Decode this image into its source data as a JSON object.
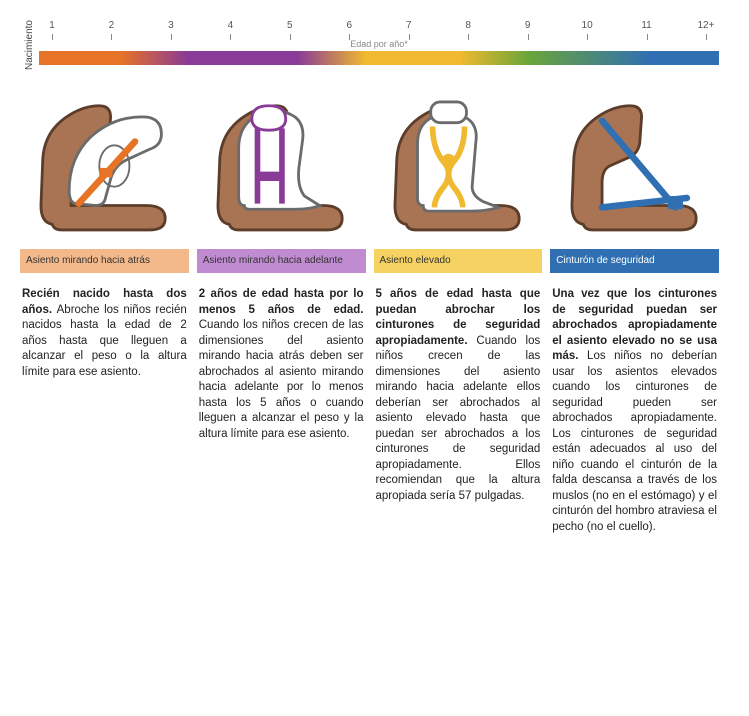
{
  "axis": {
    "birth_label": "Nacimiento",
    "ticks": [
      "1",
      "2",
      "3",
      "4",
      "5",
      "6",
      "7",
      "8",
      "9",
      "10",
      "11",
      "12+"
    ],
    "caption": "Edad por año*",
    "gradient_stops": [
      {
        "c": "#e67326",
        "p": 0
      },
      {
        "c": "#e67326",
        "p": 12
      },
      {
        "c": "#8a3a97",
        "p": 22
      },
      {
        "c": "#8a3a97",
        "p": 38
      },
      {
        "c": "#f0b92f",
        "p": 48
      },
      {
        "c": "#f0b92f",
        "p": 62
      },
      {
        "c": "#6aa53a",
        "p": 72
      },
      {
        "c": "#2f6fb2",
        "p": 90
      },
      {
        "c": "#2f6fb2",
        "p": 100
      }
    ]
  },
  "stages": [
    {
      "label": "Asiento mirando hacia atrás",
      "bar_color": "#f4b98a",
      "accent": "#e67326",
      "heading": "Recién nacido hasta dos años.",
      "body": "Abroche los niños recién nacidos hasta la edad de 2 años hasta que lleguen a alcanzar el peso o la altura límite para ese asiento."
    },
    {
      "label": "Asiento mirando hacia adelante",
      "bar_color": "#c08bd0",
      "accent": "#8a3a97",
      "heading": "2 años de edad hasta por lo menos 5 años de edad.",
      "body": "Cuando los niños crecen de las dimensiones del asiento mirando hacia atrás deben ser abrochados al asiento mirando hacia adelante por lo menos hasta los 5 años o cuando lleguen a alcanzar el peso y la altura límite para ese asiento."
    },
    {
      "label": "Asiento elevado",
      "bar_color": "#f5d261",
      "accent": "#f0b92f",
      "heading": "5 años de edad hasta que puedan abrochar los cinturones de seguridad apropiadamente.",
      "body": "Cuando los niños crecen de las dimensiones del asiento mirando hacia adelante ellos deberían ser abrochados al asiento elevado hasta que puedan ser abrochados a los cinturones de seguridad apropiadamente. Ellos recomiendan que la altura apropiada sería 57 pulgadas."
    },
    {
      "label": "Cinturón de seguridad",
      "bar_color": "#2f6fb2",
      "accent": "#2f6fb2",
      "label_text_color": "#ffffff",
      "heading": "Una vez que los cinturones de seguridad puedan ser abrochados apropiadamente el asiento elevado no se usa más.",
      "body": "Los niños no deberían usar los asientos elevados cuando los cinturones de seguridad pueden ser abrochados apropiadamente. Los cinturones de seguridad están adecuados al uso del niño cuando el cinturón de la falda descansa a través de los muslos (no en el estómago) y el cinturón del hombro atraviesa el pecho (no el cuello)."
    }
  ],
  "seat_shape": {
    "fill": "#a97453",
    "stroke": "#5b3d29",
    "insert_fill": "#ffffff",
    "insert_stroke": "#6b6b6b"
  }
}
